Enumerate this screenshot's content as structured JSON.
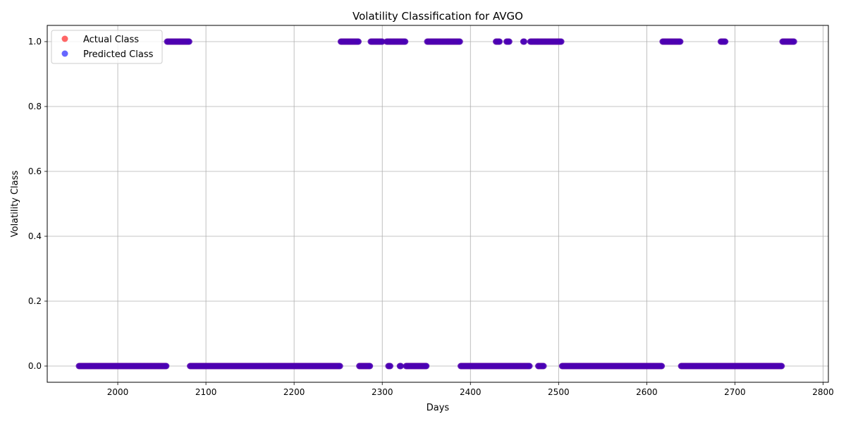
{
  "chart_data": {
    "type": "scatter",
    "title": "Volatility Classification for AVGO",
    "xlabel": "Days",
    "ylabel": "Volatility Class",
    "xlim": [
      1920,
      2806
    ],
    "ylim": [
      -0.05,
      1.05
    ],
    "xticks": [
      2000,
      2100,
      2200,
      2300,
      2400,
      2500,
      2600,
      2700,
      2800
    ],
    "yticks": [
      0.0,
      0.2,
      0.4,
      0.6,
      0.8,
      1.0
    ],
    "xtick_labels": [
      "2000",
      "2100",
      "2200",
      "2300",
      "2400",
      "2500",
      "2600",
      "2700",
      "2800"
    ],
    "ytick_labels": [
      "0.0",
      "0.2",
      "0.4",
      "0.6",
      "0.8",
      "1.0"
    ],
    "grid": true,
    "legend_position": "top-left",
    "series": [
      {
        "name": "Actual Class",
        "color": "#ff0000",
        "alpha": 0.6,
        "marker": "circle"
      },
      {
        "name": "Predicted Class",
        "color": "#0000ff",
        "alpha": 0.6,
        "marker": "circle"
      }
    ],
    "segments_class1": [
      [
        2056,
        2081
      ],
      [
        2253,
        2273
      ],
      [
        2287,
        2300
      ],
      [
        2305,
        2326
      ],
      [
        2351,
        2388
      ],
      [
        2429,
        2433
      ],
      [
        2441,
        2444
      ],
      [
        2460,
        2461
      ],
      [
        2468,
        2503
      ],
      [
        2618,
        2638
      ],
      [
        2684,
        2689
      ],
      [
        2754,
        2767
      ]
    ],
    "segments_class0": [
      [
        1956,
        2055
      ],
      [
        2082,
        2252
      ],
      [
        2274,
        2286
      ],
      [
        2307,
        2309
      ],
      [
        2320,
        2321
      ],
      [
        2327,
        2350
      ],
      [
        2389,
        2467
      ],
      [
        2477,
        2483
      ],
      [
        2504,
        2617
      ],
      [
        2639,
        2753
      ]
    ]
  }
}
